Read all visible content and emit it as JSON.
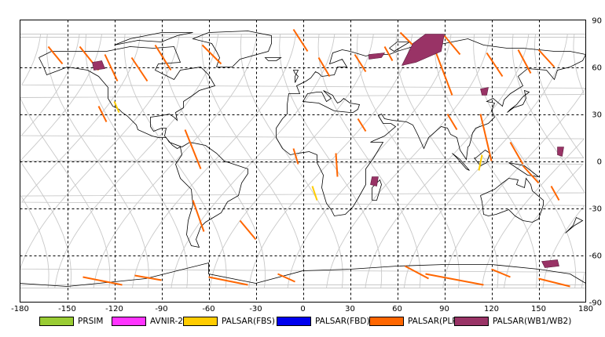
{
  "axes": {
    "x_ticks": [
      "-180",
      "-150",
      "-120",
      "-90",
      "-60",
      "-30",
      "0",
      "30",
      "60",
      "90",
      "120",
      "150",
      "180"
    ],
    "y_ticks": [
      "90",
      "60",
      "30",
      "0",
      "-30",
      "-60",
      "-90"
    ]
  },
  "legend": [
    {
      "label": "PRSIM",
      "color": "#99cc33"
    },
    {
      "label": "AVNIR-2",
      "color": "#ff33ff"
    },
    {
      "label": "PALSAR(FBS)",
      "color": "#ffcc00"
    },
    {
      "label": "PALSAR(FBD)",
      "color": "#0000ee"
    },
    {
      "label": "PALSAR(PLR)",
      "color": "#ff6600"
    },
    {
      "label": "PALSAR(WB1/WB2)",
      "color": "#993366"
    }
  ],
  "map_extent": {
    "lon": [
      -180,
      180
    ],
    "lat": [
      -90,
      90
    ]
  },
  "colors": {
    "grid": "#000000",
    "orbit": "#c8c8c8",
    "coast": "#000000"
  }
}
